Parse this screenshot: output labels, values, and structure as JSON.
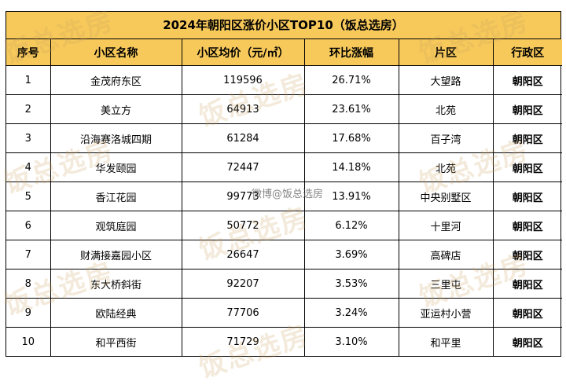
{
  "title": "2024年朝阳区涨价小区TOP10（饭总选房）",
  "columns": [
    "序号",
    "小区名称",
    "小区均价（元/㎡）",
    "环比涨幅",
    "片区",
    "行政区"
  ],
  "rows": [
    {
      "no": "1",
      "name": "金茂府东区",
      "price": "119596",
      "change": "26.71%",
      "area": "大望路",
      "district": "朝阳区"
    },
    {
      "no": "2",
      "name": "美立方",
      "price": "64913",
      "change": "23.61%",
      "area": "北苑",
      "district": "朝阳区"
    },
    {
      "no": "3",
      "name": "沿海赛洛城四期",
      "price": "61284",
      "change": "17.68%",
      "area": "百子湾",
      "district": "朝阳区"
    },
    {
      "no": "4",
      "name": "华发颐园",
      "price": "72447",
      "change": "14.18%",
      "area": "北苑",
      "district": "朝阳区"
    },
    {
      "no": "5",
      "name": "香江花园",
      "price": "99773",
      "change": "13.91%",
      "area": "中央别墅区",
      "district": "朝阳区"
    },
    {
      "no": "6",
      "name": "观筑庭园",
      "price": "50772",
      "change": "6.12%",
      "area": "十里河",
      "district": "朝阳区"
    },
    {
      "no": "7",
      "name": "财满接嘉园小区",
      "price": "26647",
      "change": "3.69%",
      "area": "高碑店",
      "district": "朝阳区"
    },
    {
      "no": "8",
      "name": "东大桥斜街",
      "price": "92207",
      "change": "3.53%",
      "area": "三里屯",
      "district": "朝阳区"
    },
    {
      "no": "9",
      "name": "欧陆经典",
      "price": "77706",
      "change": "3.24%",
      "area": "亚运村小营",
      "district": "朝阳区"
    },
    {
      "no": "10",
      "name": "和平西街",
      "price": "71729",
      "change": "3.10%",
      "area": "和平里",
      "district": "朝阳区"
    }
  ],
  "watermark": "饭总选房",
  "weibo_mark": "微博@饭总选房",
  "colors": {
    "header_bg": "#f7c95b",
    "watermark": "#c8a05a"
  }
}
